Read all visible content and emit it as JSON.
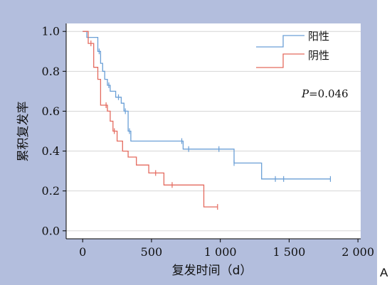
{
  "panel_label": "A",
  "chart_data": {
    "type": "line",
    "step": true,
    "xlabel": "复发时间（d）",
    "ylabel": "累积复发率",
    "xlim": [
      -120,
      2020
    ],
    "ylim": [
      -0.04,
      1.04
    ],
    "x_ticks": [
      0,
      500,
      1000,
      1500,
      2000
    ],
    "x_tick_labels": [
      "0",
      "500",
      "1 000",
      "1 500",
      "2 000"
    ],
    "y_ticks": [
      0.0,
      0.2,
      0.4,
      0.6,
      0.8,
      1.0
    ],
    "y_tick_labels": [
      "0.0",
      "0.2",
      "0.4",
      "0.6",
      "0.8",
      "1.0"
    ],
    "grid": "horizontal",
    "legend_position": "top-right",
    "annotation": {
      "prefix": "P",
      "text": "=0.046"
    },
    "series": [
      {
        "name": "阳性",
        "color": "#6a9fd6",
        "x": [
          0,
          30,
          110,
          130,
          145,
          160,
          180,
          200,
          240,
          280,
          300,
          330,
          350,
          730,
          1100,
          1300,
          1800
        ],
        "y": [
          1.0,
          0.97,
          0.9,
          0.84,
          0.8,
          0.76,
          0.73,
          0.7,
          0.67,
          0.64,
          0.6,
          0.5,
          0.45,
          0.41,
          0.34,
          0.26,
          0.26
        ],
        "censored_x": [
          120,
          190,
          260,
          310,
          340,
          720,
          770,
          990,
          1100,
          1400,
          1460,
          1800
        ],
        "censored_y": [
          0.9,
          0.73,
          0.67,
          0.6,
          0.5,
          0.45,
          0.41,
          0.41,
          0.34,
          0.26,
          0.26,
          0.26
        ]
      },
      {
        "name": "阴性",
        "color": "#e46a5e",
        "x": [
          0,
          40,
          80,
          110,
          130,
          180,
          200,
          220,
          250,
          290,
          330,
          390,
          480,
          590,
          880,
          980
        ],
        "y": [
          1.0,
          0.94,
          0.82,
          0.76,
          0.63,
          0.6,
          0.55,
          0.5,
          0.45,
          0.4,
          0.37,
          0.33,
          0.29,
          0.23,
          0.12,
          0.12
        ],
        "censored_x": [
          60,
          170,
          230,
          530,
          650,
          980
        ],
        "censored_y": [
          0.94,
          0.63,
          0.5,
          0.29,
          0.23,
          0.12
        ]
      }
    ]
  }
}
